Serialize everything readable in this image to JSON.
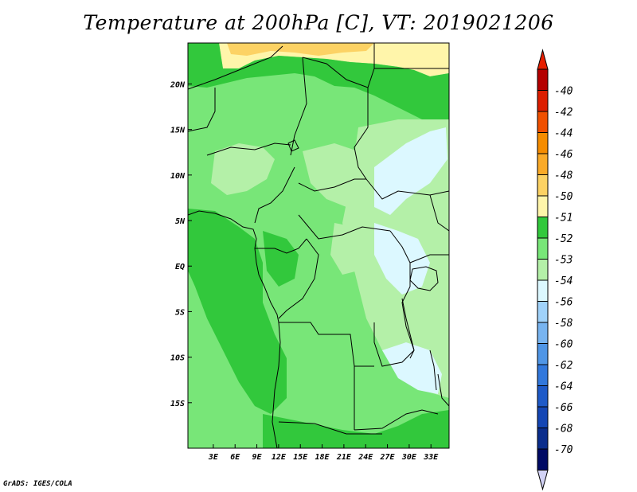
{
  "title": "Temperature at 200hPa [C], VT: 2019021206",
  "credit": "GrADS: IGES/COLA",
  "map": {
    "lon_range": [
      -0.5,
      35.5
    ],
    "lat_range": [
      -20,
      24.5
    ],
    "x_ticks": [
      {
        "value": 3,
        "label": "3E"
      },
      {
        "value": 6,
        "label": "6E"
      },
      {
        "value": 9,
        "label": "9E"
      },
      {
        "value": 12,
        "label": "12E"
      },
      {
        "value": 15,
        "label": "15E"
      },
      {
        "value": 18,
        "label": "18E"
      },
      {
        "value": 21,
        "label": "21E"
      },
      {
        "value": 24,
        "label": "24E"
      },
      {
        "value": 27,
        "label": "27E"
      },
      {
        "value": 30,
        "label": "30E"
      },
      {
        "value": 33,
        "label": "33E"
      }
    ],
    "y_ticks": [
      {
        "value": 20,
        "label": "20N"
      },
      {
        "value": 15,
        "label": "15N"
      },
      {
        "value": 10,
        "label": "10N"
      },
      {
        "value": 5,
        "label": "5N"
      },
      {
        "value": 0,
        "label": "EQ"
      },
      {
        "value": -5,
        "label": "5S"
      },
      {
        "value": -10,
        "label": "10S"
      },
      {
        "value": -15,
        "label": "15S"
      }
    ]
  },
  "legend": {
    "colors": [
      "#b40000",
      "#dc1e00",
      "#f05000",
      "#f58c00",
      "#faaa28",
      "#fcd264",
      "#fff5aa",
      "#32c83c",
      "#78e678",
      "#b4f0a8",
      "#dcf8ff",
      "#a0d2fa",
      "#78b4f0",
      "#5096e6",
      "#3278dc",
      "#1e5ac8",
      "#1446b4",
      "#0a2d8c",
      "#000a64"
    ],
    "labels": [
      "-40",
      "-42",
      "-44",
      "-46",
      "-48",
      "-50",
      "-51",
      "-52",
      "-53",
      "-54",
      "-56",
      "-58",
      "-60",
      "-62",
      "-64",
      "-66",
      "-68",
      "-70"
    ],
    "top_triangle_color": "#e61e00",
    "bottom_triangle_color": "#d2d2f5"
  }
}
